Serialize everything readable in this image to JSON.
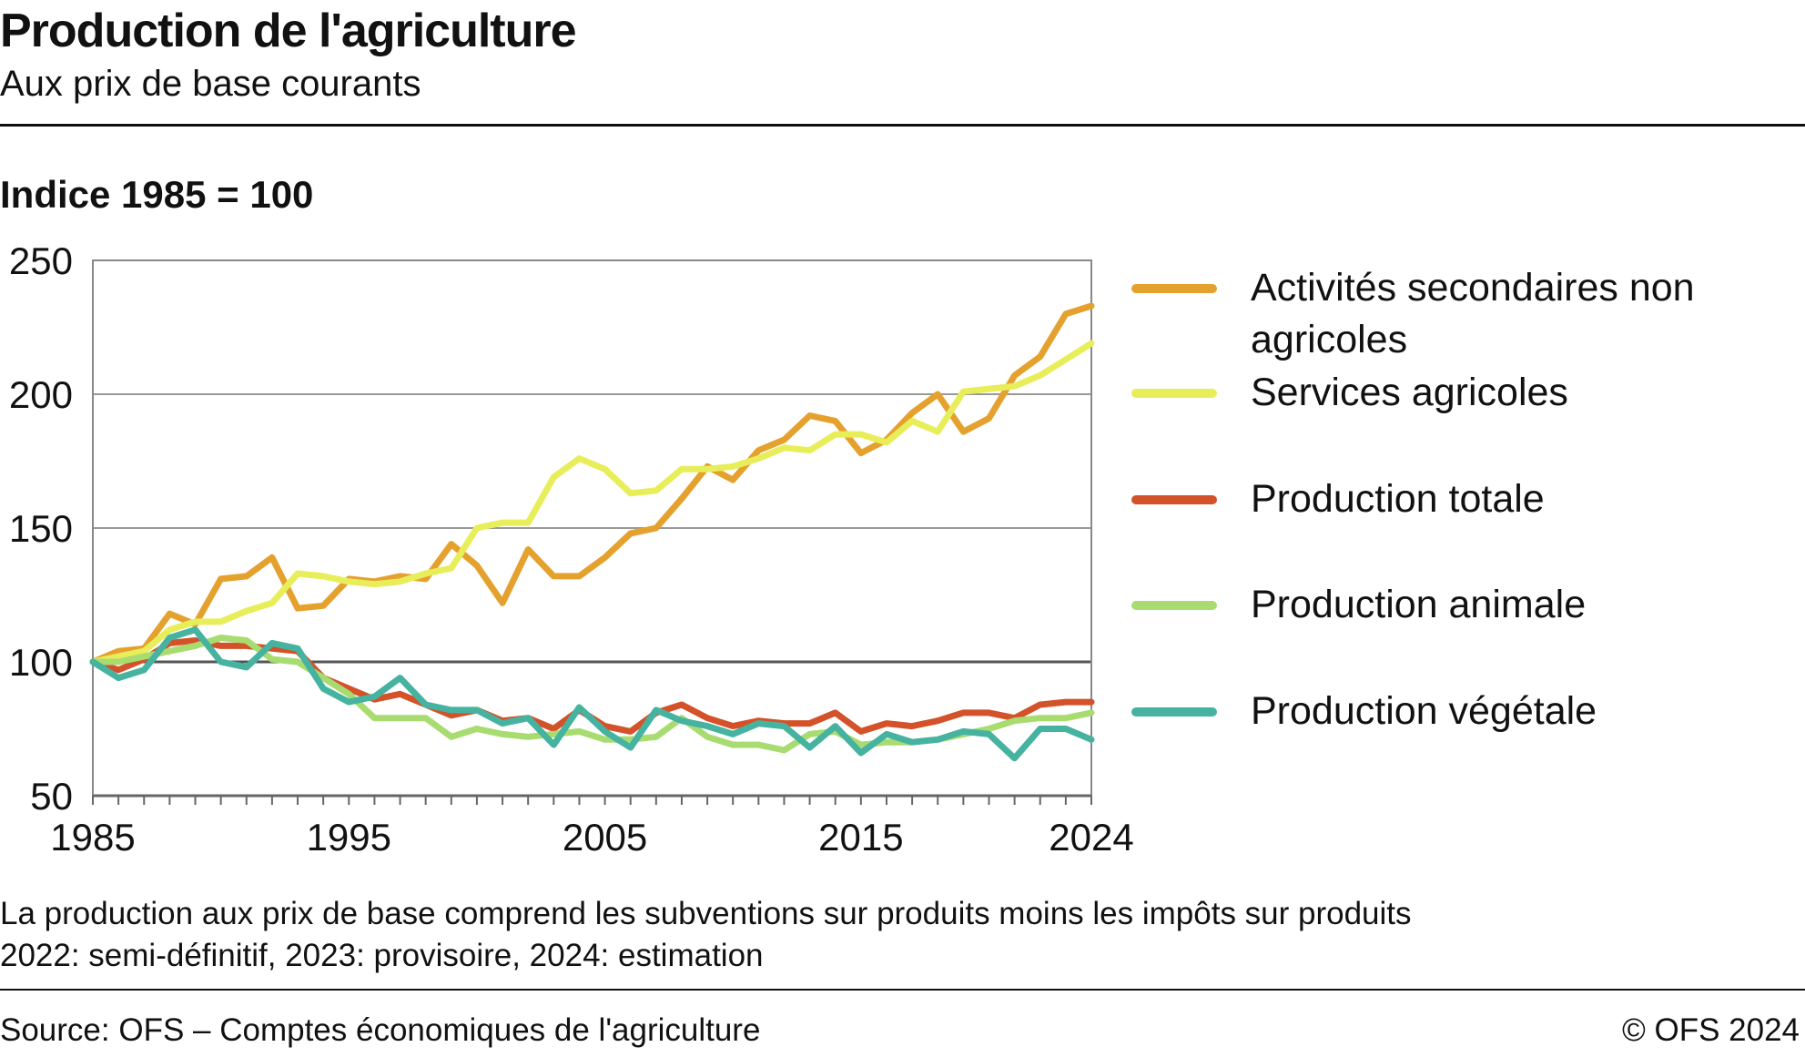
{
  "header": {
    "title": "Production de l'agriculture",
    "subtitle": "Aux prix de base courants"
  },
  "index_label": "Indice 1985 = 100",
  "notes": [
    "La production aux prix de base comprend les subventions sur produits moins les impôts sur produits",
    "2022: semi-définitif, 2023: provisoire, 2024: estimation"
  ],
  "footer": {
    "source": "Source: OFS – Comptes économiques de l'agriculture",
    "copyright": "© OFS 2024"
  },
  "chart_data": {
    "type": "line",
    "title": "",
    "xlabel": "",
    "ylabel": "Indice 1985 = 100",
    "xlim": [
      1985,
      2024
    ],
    "ylim": [
      50,
      250
    ],
    "x_ticks": [
      1985,
      1995,
      2005,
      2015,
      2024
    ],
    "y_ticks": [
      50,
      100,
      150,
      200,
      250
    ],
    "grid": true,
    "legend_position": "right",
    "x": [
      1985,
      1986,
      1987,
      1988,
      1989,
      1990,
      1991,
      1992,
      1993,
      1994,
      1995,
      1996,
      1997,
      1998,
      1999,
      2000,
      2001,
      2002,
      2003,
      2004,
      2005,
      2006,
      2007,
      2008,
      2009,
      2010,
      2011,
      2012,
      2013,
      2014,
      2015,
      2016,
      2017,
      2018,
      2019,
      2020,
      2021,
      2022,
      2023,
      2024
    ],
    "series": [
      {
        "name": "Activités secondaires non agricoles",
        "color": "#E5A12E",
        "values": [
          100,
          104,
          105,
          118,
          114,
          131,
          132,
          139,
          120,
          121,
          131,
          130,
          132,
          131,
          144,
          136,
          122,
          142,
          132,
          132,
          139,
          148,
          150,
          161,
          173,
          168,
          179,
          183,
          192,
          190,
          178,
          183,
          193,
          200,
          186,
          191,
          207,
          214,
          230,
          233
        ]
      },
      {
        "name": "Services agricoles",
        "color": "#E8EE5A",
        "values": [
          100,
          102,
          104,
          112,
          115,
          115,
          119,
          122,
          133,
          132,
          130,
          129,
          130,
          133,
          135,
          150,
          152,
          152,
          169,
          176,
          172,
          163,
          164,
          172,
          172,
          173,
          176,
          180,
          179,
          185,
          185,
          182,
          190,
          186,
          201,
          202,
          203,
          207,
          213,
          219
        ]
      },
      {
        "name": "Production totale",
        "color": "#D4522A",
        "values": [
          100,
          97,
          101,
          107,
          108,
          106,
          106,
          105,
          104,
          94,
          90,
          86,
          88,
          84,
          80,
          82,
          78,
          79,
          75,
          82,
          76,
          74,
          81,
          84,
          79,
          76,
          78,
          77,
          77,
          81,
          74,
          77,
          76,
          78,
          81,
          81,
          79,
          84,
          85,
          85
        ]
      },
      {
        "name": "Production animale",
        "color": "#A8DC70",
        "values": [
          100,
          100,
          102,
          104,
          106,
          109,
          108,
          101,
          100,
          94,
          88,
          79,
          79,
          79,
          72,
          75,
          73,
          72,
          73,
          74,
          71,
          71,
          72,
          79,
          72,
          69,
          69,
          67,
          73,
          74,
          69,
          70,
          70,
          71,
          73,
          75,
          78,
          79,
          79,
          81
        ]
      },
      {
        "name": "Production végétale",
        "color": "#46B3A1",
        "values": [
          100,
          94,
          97,
          109,
          112,
          100,
          98,
          107,
          105,
          90,
          85,
          87,
          94,
          84,
          82,
          82,
          77,
          79,
          69,
          83,
          74,
          68,
          82,
          78,
          76,
          73,
          77,
          76,
          68,
          76,
          66,
          73,
          70,
          71,
          74,
          73,
          64,
          75,
          75,
          71
        ]
      }
    ]
  }
}
